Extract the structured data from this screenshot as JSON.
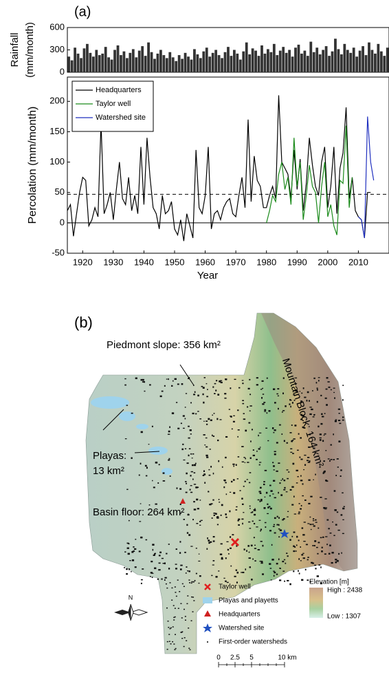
{
  "chart_data": [
    {
      "type": "bar",
      "panel_label": "(a)",
      "ylabel": [
        "Rainfall",
        "(mm/month)"
      ],
      "color": "#333333",
      "x": [
        1915,
        1916,
        1917,
        1918,
        1919,
        1920,
        1921,
        1922,
        1923,
        1924,
        1925,
        1926,
        1927,
        1928,
        1929,
        1930,
        1931,
        1932,
        1933,
        1934,
        1935,
        1936,
        1937,
        1938,
        1939,
        1940,
        1941,
        1942,
        1943,
        1944,
        1945,
        1946,
        1947,
        1948,
        1949,
        1950,
        1951,
        1952,
        1953,
        1954,
        1955,
        1956,
        1957,
        1958,
        1959,
        1960,
        1961,
        1962,
        1963,
        1964,
        1965,
        1966,
        1967,
        1968,
        1969,
        1970,
        1971,
        1972,
        1973,
        1974,
        1975,
        1976,
        1977,
        1978,
        1979,
        1980,
        1981,
        1982,
        1983,
        1984,
        1985,
        1986,
        1987,
        1988,
        1989,
        1990,
        1991,
        1992,
        1993,
        1994,
        1995,
        1996,
        1997,
        1998,
        1999,
        2000,
        2001,
        2002,
        2003,
        2004,
        2005,
        2006,
        2007,
        2008,
        2009,
        2010,
        2011,
        2012,
        2013,
        2014,
        2015,
        2016,
        2017,
        2018,
        2019
      ],
      "values": [
        210,
        160,
        330,
        250,
        190,
        320,
        380,
        260,
        210,
        300,
        230,
        250,
        340,
        200,
        170,
        300,
        360,
        230,
        280,
        190,
        260,
        310,
        200,
        290,
        350,
        220,
        400,
        270,
        180,
        250,
        300,
        230,
        190,
        270,
        200,
        150,
        230,
        180,
        260,
        210,
        170,
        310,
        240,
        190,
        280,
        330,
        210,
        260,
        300,
        230,
        190,
        270,
        340,
        220,
        300,
        250,
        170,
        280,
        400,
        240,
        320,
        290,
        220,
        360,
        250,
        310,
        270,
        380,
        230,
        290,
        340,
        260,
        300,
        210,
        330,
        370,
        250,
        290,
        220,
        410,
        270,
        330,
        240,
        300,
        350,
        220,
        280,
        450,
        310,
        240,
        380,
        300,
        260,
        330,
        210,
        290,
        350,
        230,
        400,
        300,
        250,
        380,
        280,
        220,
        330
      ],
      "xlim": [
        1915,
        2020
      ],
      "ylim": [
        0,
        600
      ],
      "yticks": [
        0,
        300,
        600
      ]
    },
    {
      "type": "line",
      "ylabel": "Percolation (mm/month)",
      "xlabel": "Year",
      "legend": "upper left",
      "xlim": [
        1915,
        2020
      ],
      "ylim": [
        -50,
        240
      ],
      "xticks": [
        1920,
        1930,
        1940,
        1950,
        1960,
        1970,
        1980,
        1990,
        2000,
        2010
      ],
      "yticks": [
        -50,
        0,
        50,
        100,
        150,
        200
      ],
      "hlines": [
        {
          "value": 0,
          "style": "solid"
        },
        {
          "value": 47,
          "style": "dashed"
        }
      ],
      "series": [
        {
          "name": "Headquarters",
          "color": "#000000",
          "x": [
            1915,
            1916,
            1917,
            1918,
            1919,
            1920,
            1921,
            1922,
            1923,
            1924,
            1925,
            1926,
            1927,
            1928,
            1929,
            1930,
            1931,
            1932,
            1933,
            1934,
            1935,
            1936,
            1937,
            1938,
            1939,
            1940,
            1941,
            1942,
            1943,
            1944,
            1945,
            1946,
            1947,
            1948,
            1949,
            1950,
            1951,
            1952,
            1953,
            1954,
            1955,
            1956,
            1957,
            1958,
            1959,
            1960,
            1961,
            1962,
            1963,
            1964,
            1965,
            1966,
            1967,
            1968,
            1969,
            1970,
            1971,
            1972,
            1973,
            1974,
            1975,
            1976,
            1977,
            1978,
            1979,
            1980,
            1981,
            1982,
            1983,
            1984,
            1985,
            1986,
            1987,
            1988,
            1989,
            1990,
            1991,
            1992,
            1993,
            1994,
            1995,
            1996,
            1997,
            1998,
            1999,
            2000,
            2001,
            2002,
            2003,
            2004,
            2005,
            2006,
            2007,
            2008,
            2009,
            2010,
            2011,
            2012,
            2013,
            2014
          ],
          "values": [
            20,
            30,
            -22,
            15,
            50,
            75,
            70,
            -5,
            5,
            25,
            10,
            165,
            15,
            30,
            50,
            5,
            55,
            100,
            40,
            30,
            75,
            20,
            45,
            15,
            125,
            30,
            140,
            75,
            25,
            15,
            -10,
            45,
            15,
            20,
            35,
            -10,
            -20,
            5,
            -30,
            15,
            -5,
            -25,
            120,
            25,
            15,
            45,
            125,
            -10,
            15,
            20,
            5,
            25,
            35,
            40,
            15,
            10,
            45,
            75,
            25,
            170,
            35,
            110,
            70,
            60,
            25,
            25,
            45,
            60,
            40,
            210,
            100,
            90,
            80,
            40,
            120,
            55,
            105,
            20,
            65,
            140,
            95,
            60,
            45,
            100,
            125,
            25,
            60,
            125,
            15,
            90,
            115,
            190,
            40,
            75,
            20,
            10,
            5,
            -25,
            50,
            50
          ]
        },
        {
          "name": "Taylor well",
          "color": "#1a8a1a",
          "x": [
            1980,
            1981,
            1982,
            1983,
            1984,
            1985,
            1986,
            1987,
            1988,
            1989,
            1990,
            1991,
            1992,
            1993,
            1994,
            1995,
            1996,
            1997,
            1998,
            1999,
            2000,
            2001,
            2002,
            2003,
            2004,
            2005,
            2006,
            2007,
            2008
          ],
          "values": [
            0,
            20,
            45,
            35,
            80,
            100,
            55,
            75,
            30,
            140,
            60,
            100,
            5,
            45,
            95,
            60,
            50,
            0,
            60,
            100,
            10,
            30,
            -5,
            -20,
            70,
            65,
            160,
            25,
            75
          ]
        },
        {
          "name": "Watershed site",
          "color": "#1f2fbf",
          "x": [
            2010,
            2011,
            2012,
            2013,
            2014,
            2015
          ],
          "values": [
            10,
            5,
            -25,
            175,
            100,
            70
          ]
        }
      ]
    }
  ],
  "map": {
    "panel_label": "(b)",
    "piedmont": "Piedmont slope: 356 km²",
    "playas": [
      "Playas:",
      "13 km²"
    ],
    "basin": "Basin floor: 264 km²",
    "mountain": "Mountain Block: 164 km²",
    "legend": [
      "Taylor well",
      "Playas and playetts",
      "Headquarters",
      "Watershed site",
      "First-order watersheds"
    ],
    "elevation": {
      "title": "Elevation [m]",
      "high": "High : 2438",
      "low": "Low : 1307"
    },
    "north": "N",
    "scale": [
      "0",
      "2.5",
      "5",
      "10 km"
    ]
  }
}
